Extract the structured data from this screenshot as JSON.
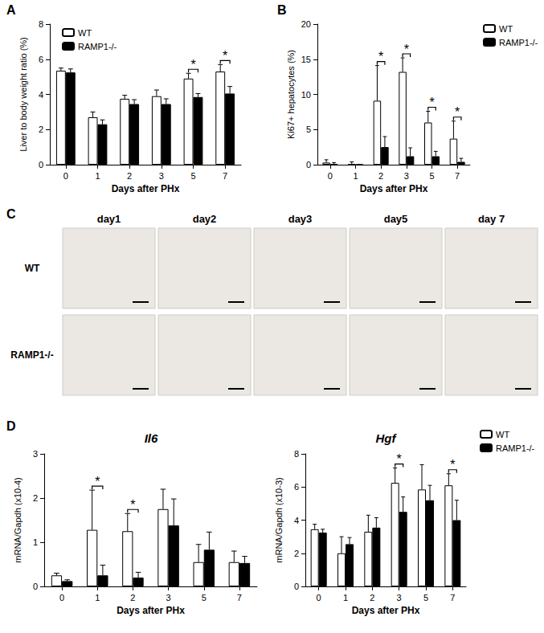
{
  "chart_data": [
    {
      "type": "bar",
      "panel_label": "A",
      "x_label": "Days after PHx",
      "y_label": "Liver to body weight ratio (%)",
      "categories": [
        "0",
        "1",
        "2",
        "3",
        "5",
        "7"
      ],
      "series": [
        {
          "name": "WT",
          "color": "#ffffff",
          "values": [
            5.35,
            2.7,
            3.75,
            3.9,
            4.9,
            5.3
          ],
          "errors": [
            0.15,
            0.3,
            0.2,
            0.35,
            0.3,
            0.4
          ]
        },
        {
          "name": "RAMP1-/-",
          "color": "#000000",
          "values": [
            5.25,
            2.3,
            3.45,
            3.45,
            3.85,
            4.05
          ],
          "errors": [
            0.2,
            0.25,
            0.25,
            0.3,
            0.2,
            0.4
          ]
        }
      ],
      "ylim": [
        0,
        8
      ],
      "yticks": [
        0,
        2,
        4,
        6,
        8
      ],
      "grid": false,
      "legend": "upper left",
      "annotations": [
        {
          "category": "5",
          "text": "*"
        },
        {
          "category": "7",
          "text": "*"
        }
      ]
    },
    {
      "type": "bar",
      "panel_label": "B",
      "x_label": "Days after PHx",
      "y_label": "Ki67+ hepatocytes (%)",
      "categories": [
        "0",
        "1",
        "2",
        "3",
        "5",
        "7"
      ],
      "series": [
        {
          "name": "WT",
          "color": "#ffffff",
          "values": [
            0.3,
            0.1,
            9.1,
            13.2,
            6.0,
            3.7
          ],
          "errors": [
            0.4,
            0.3,
            5.0,
            2.0,
            1.6,
            2.5
          ]
        },
        {
          "name": "RAMP1-/-",
          "color": "#000000",
          "values": [
            0.1,
            0,
            2.5,
            1.2,
            1.2,
            0.4
          ],
          "errors": [
            0.2,
            0,
            1.5,
            1.2,
            0.7,
            0.5
          ]
        }
      ],
      "ylim": [
        0,
        20
      ],
      "yticks": [
        0,
        5,
        10,
        15,
        20
      ],
      "grid": false,
      "legend": "upper right",
      "annotations": [
        {
          "category": "2",
          "text": "*"
        },
        {
          "category": "3",
          "text": "*"
        },
        {
          "category": "5",
          "text": "*"
        },
        {
          "category": "7",
          "text": "*"
        }
      ]
    },
    {
      "type": "bar",
      "panel_label": "D",
      "title": "Il6",
      "x_label": "Days after PHx",
      "y_label": "mRNA/Gapdh (x10-4)",
      "categories": [
        "0",
        "1",
        "2",
        "3",
        "5",
        "7"
      ],
      "series": [
        {
          "name": "WT",
          "color": "#ffffff",
          "values": [
            0.25,
            1.28,
            1.25,
            1.75,
            0.55,
            0.55
          ],
          "errors": [
            0.05,
            0.9,
            0.4,
            0.45,
            0.4,
            0.25
          ]
        },
        {
          "name": "RAMP1-/-",
          "color": "#000000",
          "values": [
            0.12,
            0.25,
            0.2,
            1.38,
            0.83,
            0.53
          ],
          "errors": [
            0.03,
            0.23,
            0.12,
            0.6,
            0.4,
            0.15
          ]
        }
      ],
      "ylim": [
        0,
        3
      ],
      "yticks": [
        0,
        1,
        2,
        3
      ],
      "grid": false,
      "annotations": [
        {
          "category": "1",
          "text": "*"
        },
        {
          "category": "2",
          "text": "*"
        }
      ]
    },
    {
      "type": "bar",
      "title": "Hgf",
      "x_label": "Days after PHx",
      "y_label": "mRNA/Gapdh (x10-3)",
      "categories": [
        "0",
        "1",
        "2",
        "3",
        "5",
        "7"
      ],
      "series": [
        {
          "name": "WT",
          "color": "#ffffff",
          "values": [
            3.45,
            2.0,
            3.3,
            6.25,
            5.85,
            6.1
          ],
          "errors": [
            0.3,
            1.0,
            1.0,
            0.9,
            1.5,
            0.7
          ]
        },
        {
          "name": "RAMP1-/-",
          "color": "#000000",
          "values": [
            3.25,
            2.55,
            3.55,
            4.5,
            5.2,
            4.0
          ],
          "errors": [
            0.2,
            0.4,
            0.6,
            0.9,
            0.9,
            1.2
          ]
        }
      ],
      "ylim": [
        0,
        8
      ],
      "yticks": [
        0,
        2,
        4,
        6,
        8
      ],
      "grid": false,
      "legend": "upper right",
      "annotations": [
        {
          "category": "3",
          "text": "*"
        },
        {
          "category": "7",
          "text": "*"
        }
      ]
    }
  ],
  "panel_c": {
    "panel_label": "C",
    "columns": [
      "day1",
      "day2",
      "day3",
      "day5",
      "day 7"
    ],
    "rows": [
      "WT",
      "RAMP1-/-"
    ]
  }
}
